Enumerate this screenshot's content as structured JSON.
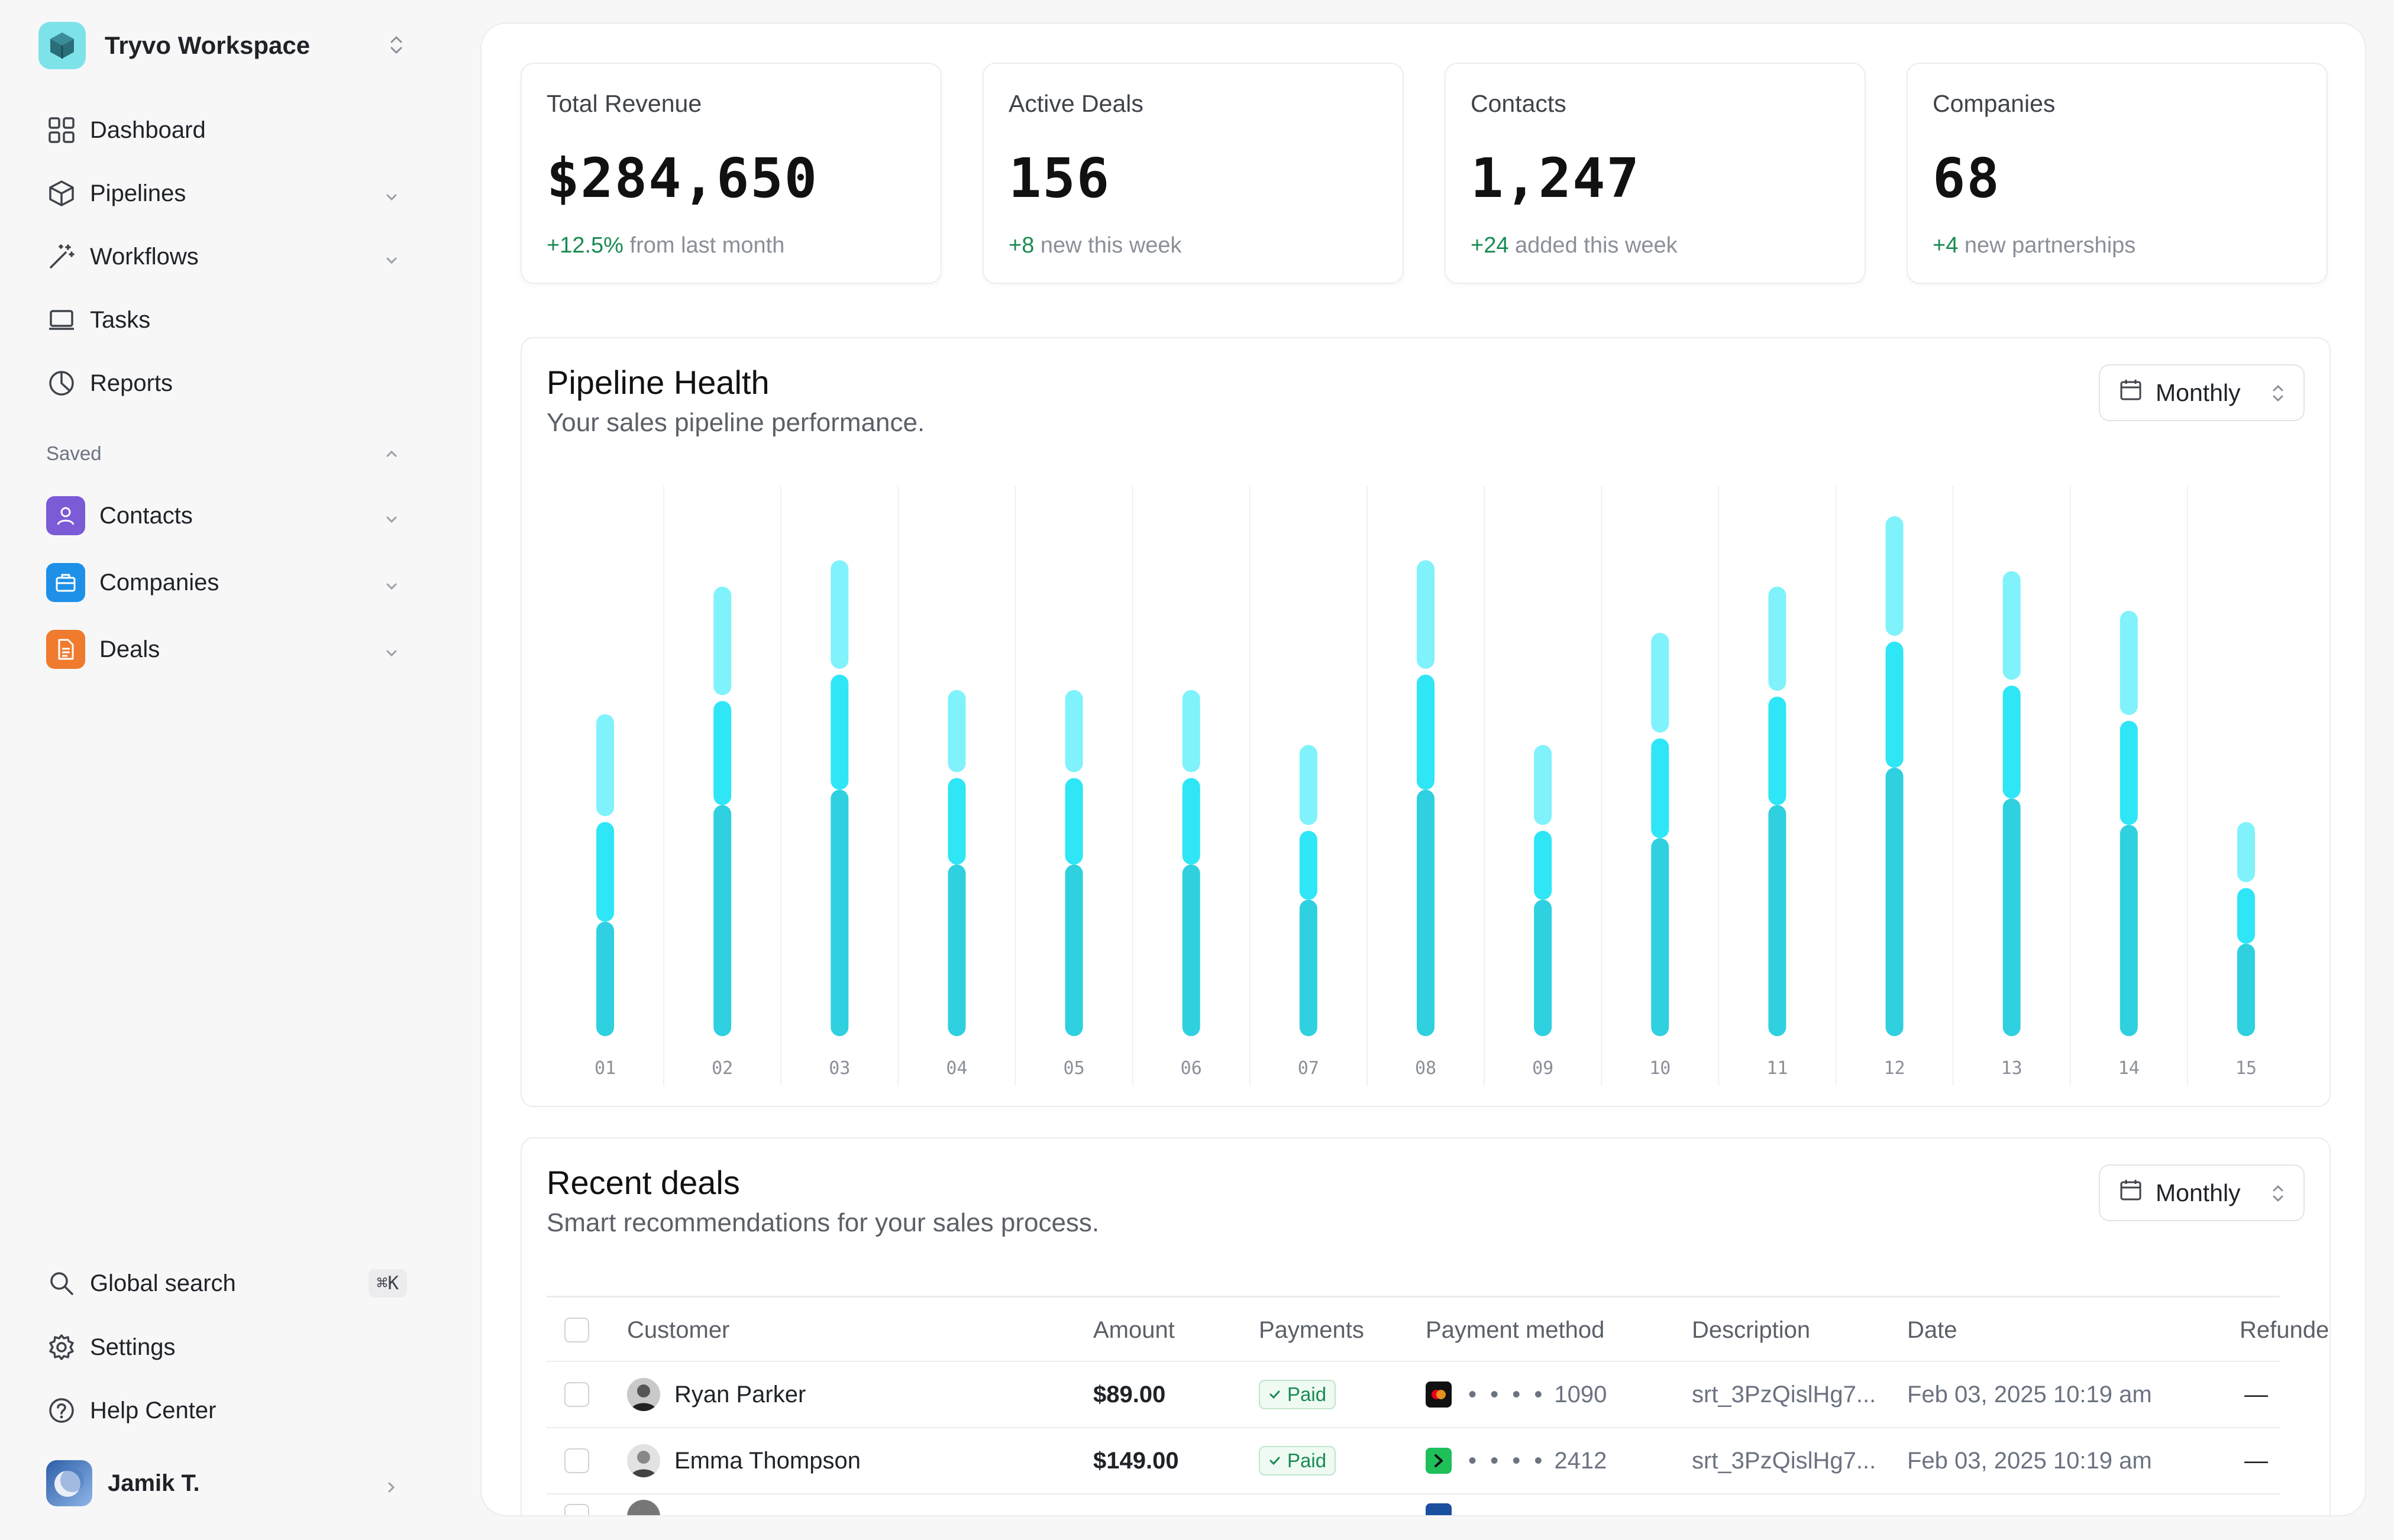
{
  "workspace": {
    "name": "Tryvo Workspace"
  },
  "nav": {
    "dashboard": "Dashboard",
    "pipelines": "Pipelines",
    "workflows": "Workflows",
    "tasks": "Tasks",
    "reports": "Reports"
  },
  "saved": {
    "label": "Saved",
    "contacts": "Contacts",
    "companies": "Companies",
    "deals": "Deals"
  },
  "footer_nav": {
    "search": "Global search",
    "search_shortcut": "⌘K",
    "settings": "Settings",
    "help": "Help Center",
    "user": "Jamik T."
  },
  "stats": [
    {
      "title": "Total Revenue",
      "value": "$284,650",
      "delta": "+12.5%",
      "note": "from last month"
    },
    {
      "title": "Active Deals",
      "value": "156",
      "delta": "+8",
      "note": "new this week"
    },
    {
      "title": "Contacts",
      "value": "1,247",
      "delta": "+24",
      "note": "added this week"
    },
    {
      "title": "Companies",
      "value": "68",
      "delta": "+4",
      "note": "new partnerships"
    }
  ],
  "pipeline": {
    "title": "Pipeline Health",
    "subtitle": "Your sales pipeline performance.",
    "period": "Monthly"
  },
  "chart_data": {
    "type": "bar",
    "stacked": true,
    "categories": [
      "01",
      "02",
      "03",
      "04",
      "05",
      "06",
      "07",
      "08",
      "09",
      "10",
      "11",
      "12",
      "13",
      "14",
      "15"
    ],
    "series": [
      {
        "values": [
          52,
          105,
          112,
          78,
          78,
          78,
          62,
          112,
          62,
          90,
          105,
          122,
          108,
          96,
          42
        ]
      },
      {
        "values": [
          48,
          50,
          55,
          42,
          42,
          42,
          34,
          55,
          34,
          48,
          52,
          60,
          54,
          50,
          28
        ]
      },
      {
        "values": [
          49,
          52,
          52,
          40,
          40,
          40,
          39,
          52,
          39,
          48,
          50,
          57,
          52,
          50,
          30
        ]
      }
    ],
    "colors": [
      "#2fd0e0",
      "#2ee6f6",
      "#7ff2fb"
    ],
    "ylim": [
      0,
      250
    ],
    "grid": true
  },
  "deals": {
    "title": "Recent deals",
    "subtitle": "Smart recommendations for your sales process.",
    "period": "Monthly",
    "columns": [
      "Customer",
      "Amount",
      "Payments",
      "Payment method",
      "Description",
      "Date",
      "Refunde"
    ],
    "rows": [
      {
        "customer": "Ryan Parker",
        "amount": "$89.00",
        "payment": "Paid",
        "method_dots": "• • • •",
        "method_last4": "1090",
        "description": "srt_3PzQislHg7...",
        "date": "Feb 03, 2025 10:19 am",
        "refunded": "—"
      },
      {
        "customer": "Emma Thompson",
        "amount": "$149.00",
        "payment": "Paid",
        "method_dots": "• • • •",
        "method_last4": "2412",
        "description": "srt_3PzQislHg7...",
        "date": "Feb 03, 2025 10:19 am",
        "refunded": "—"
      }
    ]
  },
  "icons": {
    "workspace": "cube-logo-icon",
    "dashboard": "grid-icon",
    "pipelines": "box-icon",
    "workflows": "magic-wand-icon",
    "tasks": "laptop-icon",
    "reports": "pie-chart-icon",
    "contacts": "user-icon",
    "companies": "briefcase-icon",
    "deals": "document-icon",
    "search": "search-icon",
    "settings": "gear-icon",
    "help": "help-circle-icon",
    "calendar": "calendar-icon"
  },
  "colors": {
    "accent_positive": "#1a8a52",
    "contacts_badge": "#7b5bd6",
    "companies_badge": "#1e90e8",
    "deals_badge": "#f07a2d"
  }
}
